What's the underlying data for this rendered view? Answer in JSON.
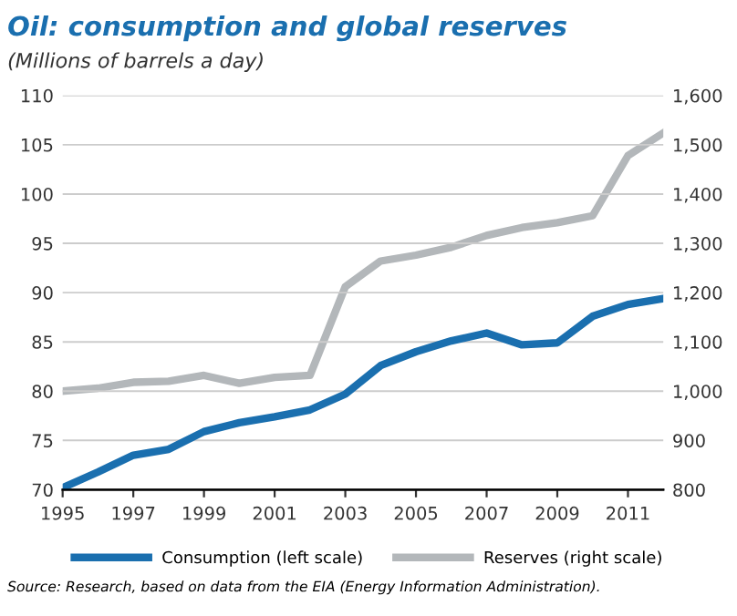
{
  "chart_data": {
    "type": "line",
    "title": "Oil: consumption and global reserves",
    "subtitle": "(Millions of barrels a day)",
    "x": [
      1995,
      1996,
      1997,
      1998,
      1999,
      2000,
      2001,
      2002,
      2003,
      2004,
      2005,
      2006,
      2007,
      2008,
      2009,
      2010,
      2011,
      2012
    ],
    "series": [
      {
        "name": "Consumption (left scale)",
        "color": "#1a6faf",
        "values": [
          70.2,
          71.8,
          73.5,
          74.1,
          75.9,
          76.8,
          77.4,
          78.1,
          79.7,
          82.6,
          84.0,
          85.1,
          85.9,
          84.7,
          84.9,
          87.6,
          88.8,
          89.4
        ]
      },
      {
        "name": "Reserves (right scale)",
        "color": "#b3b7ba",
        "axis": "y2",
        "values": [
          1000,
          1006,
          1018,
          1020,
          1032,
          1016,
          1028,
          1032,
          1212,
          1264,
          1276,
          1292,
          1316,
          1332,
          1342,
          1356,
          1478,
          1524
        ]
      }
    ],
    "xlim": [
      1995,
      2012
    ],
    "xticks": [
      1995,
      1997,
      1999,
      2001,
      2003,
      2005,
      2007,
      2009,
      2011
    ],
    "ylim": [
      70,
      110
    ],
    "yticks": [
      70,
      75,
      80,
      85,
      90,
      95,
      100,
      105,
      110
    ],
    "y2lim": [
      800,
      1600
    ],
    "y2ticks": [
      {
        "value": 800,
        "label": "800"
      },
      {
        "value": 900,
        "label": "900"
      },
      {
        "value": 1000,
        "label": "1,000"
      },
      {
        "value": 1100,
        "label": "1,100"
      },
      {
        "value": 1200,
        "label": "1,200"
      },
      {
        "value": 1300,
        "label": "1,300"
      },
      {
        "value": 1400,
        "label": "1,400"
      },
      {
        "value": 1500,
        "label": "1,500"
      },
      {
        "value": 1600,
        "label": "1,600"
      }
    ],
    "grid": "y",
    "legend": "bottom",
    "line_style": "solid",
    "annotations": [
      "Source: Research, based on data from the EIA (Energy Information Administration)."
    ]
  }
}
